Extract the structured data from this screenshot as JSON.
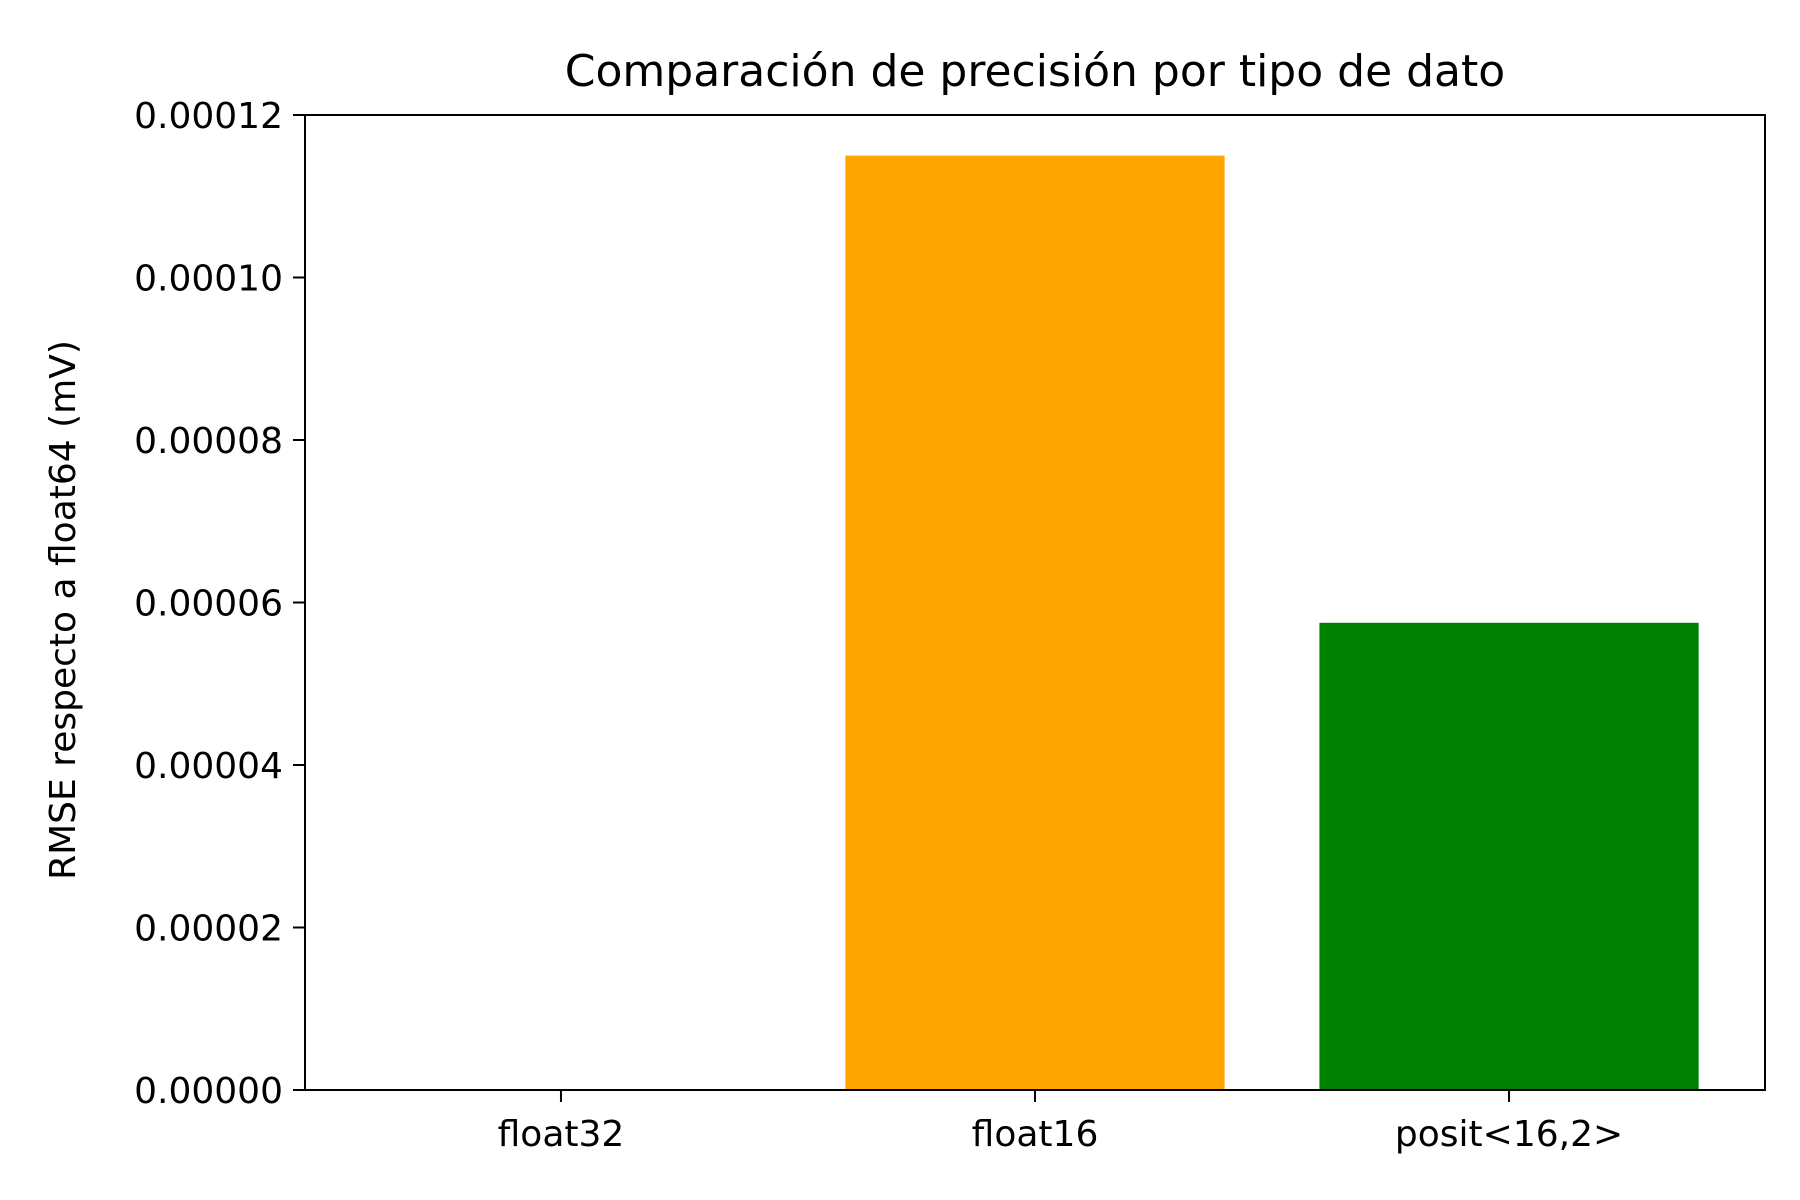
{
  "chart_data": {
    "type": "bar",
    "title": "Comparación de precisión por tipo de dato",
    "xlabel": "",
    "ylabel": "RMSE respecto a float64 (mV)",
    "categories": [
      "float32",
      "float16",
      "posit<16,2>"
    ],
    "values": [
      1e-07,
      0.000115,
      5.75e-05
    ],
    "colors": [
      "#1f77b4",
      "#ffa500",
      "#008000"
    ],
    "ylim": [
      0,
      0.00012
    ],
    "yticks": [
      0,
      2e-05,
      4e-05,
      6e-05,
      8e-05,
      0.0001,
      0.00012
    ],
    "ytick_labels": [
      "0.00000",
      "0.00002",
      "0.00004",
      "0.00006",
      "0.00008",
      "0.00010",
      "0.00012"
    ],
    "grid": false,
    "legend": "none"
  }
}
